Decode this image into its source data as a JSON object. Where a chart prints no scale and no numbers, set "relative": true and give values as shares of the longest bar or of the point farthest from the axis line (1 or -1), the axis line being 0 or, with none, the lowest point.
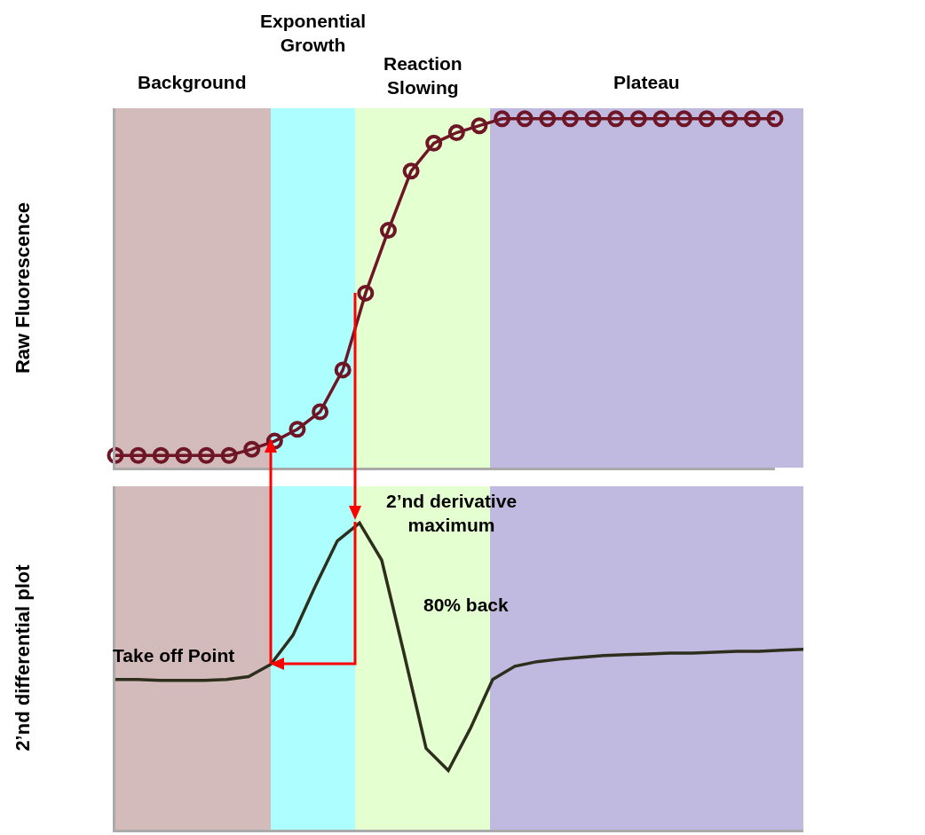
{
  "chart_data": [
    {
      "type": "line",
      "relative": true,
      "ylabel": "Raw Fluorescence",
      "categories": [
        null,
        null,
        null,
        null,
        null,
        null,
        null,
        null,
        null,
        null,
        null,
        null,
        null,
        null,
        null,
        null,
        null,
        null,
        null,
        null,
        null,
        null,
        null,
        null,
        null,
        null,
        null,
        null,
        null,
        null
      ],
      "series": [
        {
          "color": "#6e1526",
          "marker": "circle",
          "values": [
            0.035,
            0.035,
            0.035,
            0.035,
            0.035,
            0.035,
            0.053,
            0.076,
            0.11,
            0.16,
            0.28,
            0.5,
            0.68,
            0.85,
            0.93,
            0.96,
            0.98,
            1,
            1,
            1,
            1,
            1,
            1,
            1,
            1,
            1,
            1,
            1,
            1,
            1
          ]
        }
      ],
      "annotations": [
        "Background",
        "Exponential Growth",
        "Reaction Slowing",
        "Plateau"
      ]
    },
    {
      "type": "line",
      "relative": true,
      "ylabel": "2’nd differential plot",
      "categories": [
        null,
        null,
        null,
        null,
        null,
        null,
        null,
        null,
        null,
        null,
        null,
        null,
        null,
        null,
        null,
        null,
        null,
        null,
        null,
        null,
        null,
        null,
        null,
        null,
        null,
        null,
        null,
        null,
        null,
        null,
        null,
        null
      ],
      "series": [
        {
          "color": "#2e2e1c",
          "values": [
            0.49,
            0.49,
            0.487,
            0.487,
            0.487,
            0.49,
            0.499,
            0.539,
            0.634,
            0.793,
            0.942,
            1,
            0.879,
            0.576,
            0.265,
            0.193,
            0.331,
            0.49,
            0.533,
            0.548,
            0.556,
            0.562,
            0.568,
            0.571,
            0.573,
            0.576,
            0.576,
            0.579,
            0.582,
            0.582,
            0.585,
            0.588
          ]
        }
      ],
      "annotations": [
        "Take off Point",
        "2’nd derivative maximum",
        "80% back"
      ]
    }
  ]
}
